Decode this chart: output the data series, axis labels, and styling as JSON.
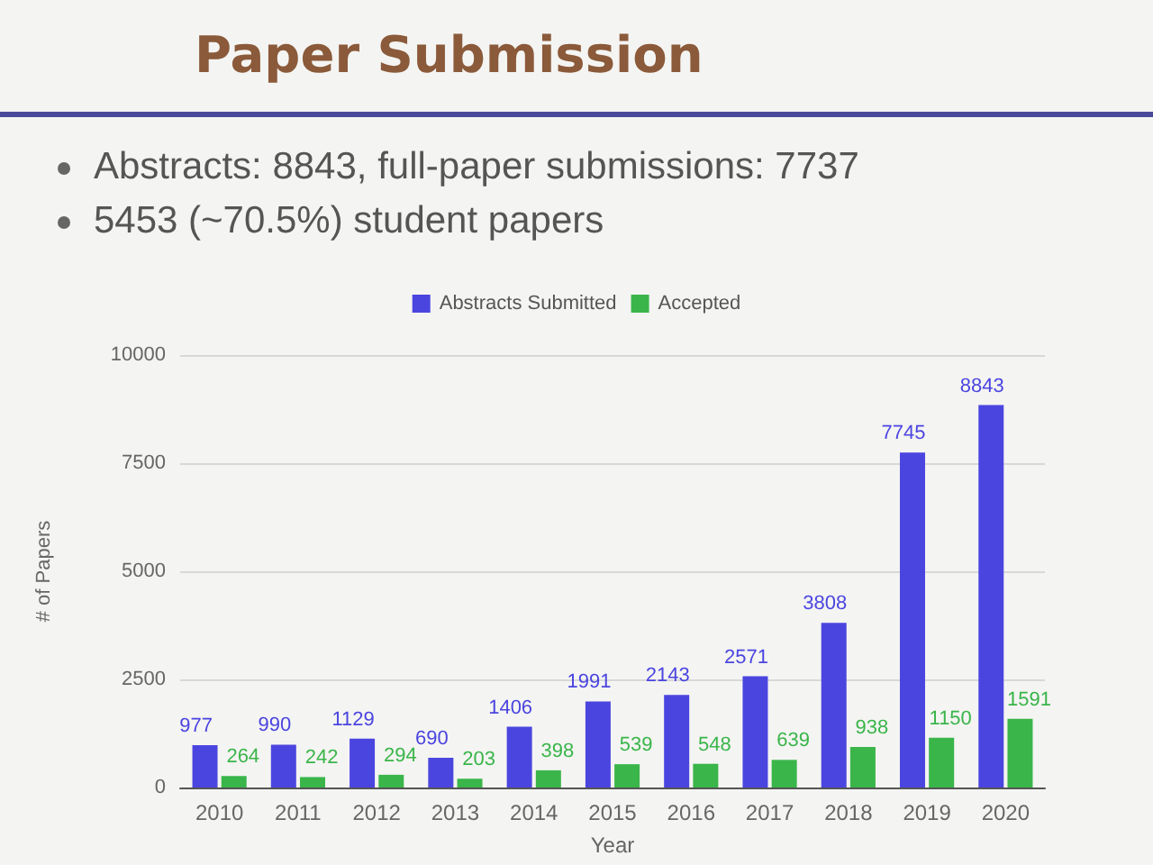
{
  "chart_data": {
    "type": "bar",
    "title": "Paper Submission",
    "annotations": [
      "Abstracts: 8843, full-paper submissions: 7737",
      "5453 (~70.5%) student papers"
    ],
    "xlabel": "Year",
    "ylabel": "# of Papers",
    "categories": [
      "2010",
      "2011",
      "2012",
      "2013",
      "2014",
      "2015",
      "2016",
      "2017",
      "2018",
      "2019",
      "2020"
    ],
    "series": [
      {
        "name": "Abstracts Submitted",
        "color": "#4b45e0",
        "values": [
          977,
          990,
          1129,
          690,
          1406,
          1991,
          2143,
          2571,
          3808,
          7745,
          8843
        ]
      },
      {
        "name": "Accepted",
        "color": "#3ab54a",
        "values": [
          264,
          242,
          294,
          203,
          398,
          539,
          548,
          639,
          938,
          1150,
          1591
        ]
      }
    ],
    "ylim": [
      0,
      10000
    ],
    "yticks": [
      0,
      2500,
      5000,
      7500,
      10000
    ],
    "grid": "y",
    "legend": "top",
    "data_labels": true
  }
}
